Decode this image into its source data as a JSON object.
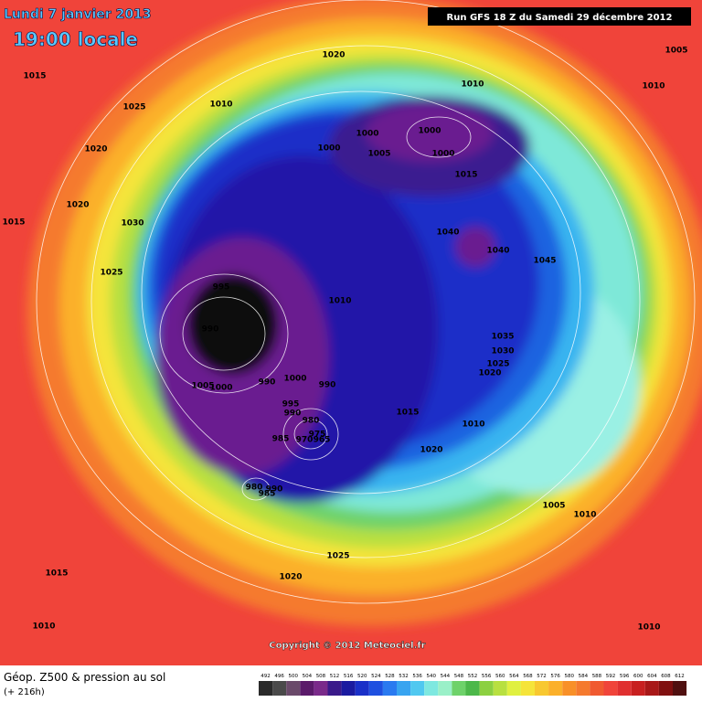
{
  "title": {
    "date": "Lundi 7 janvier 2013",
    "time": "19:00 locale"
  },
  "run": "Run GFS 18 Z du Samedi 29 décembre 2012",
  "copyright": "Copyright © 2012 Meteociel.fr",
  "legend": {
    "title": "Géop. Z500 & pression au sol",
    "subtitle": "(+ 216h)",
    "scale": [
      "492",
      "496",
      "500",
      "504",
      "508",
      "512",
      "516",
      "520",
      "524",
      "528",
      "532",
      "536",
      "540",
      "544",
      "548",
      "552",
      "556",
      "560",
      "564",
      "568",
      "572",
      "576",
      "580",
      "584",
      "588",
      "592",
      "596",
      "600",
      "604",
      "608",
      "612"
    ]
  },
  "isobars": [
    "1015",
    "1025",
    "1010",
    "1020",
    "1010",
    "1005",
    "1010",
    "1020",
    "1000",
    "1000",
    "1000",
    "1005",
    "1000",
    "1015",
    "1020",
    "1030",
    "1015",
    "1040",
    "1040",
    "1045",
    "1025",
    "995",
    "1010",
    "990",
    "1035",
    "1030",
    "1025",
    "1020",
    "1005",
    "1000",
    "990",
    "1000",
    "990",
    "995",
    "990",
    "980",
    "1015",
    "1010",
    "985",
    "975",
    "970",
    "965",
    "1020",
    "980",
    "985",
    "990",
    "1005",
    "1010",
    "1025",
    "1015",
    "1020",
    "1010",
    "1010"
  ]
}
